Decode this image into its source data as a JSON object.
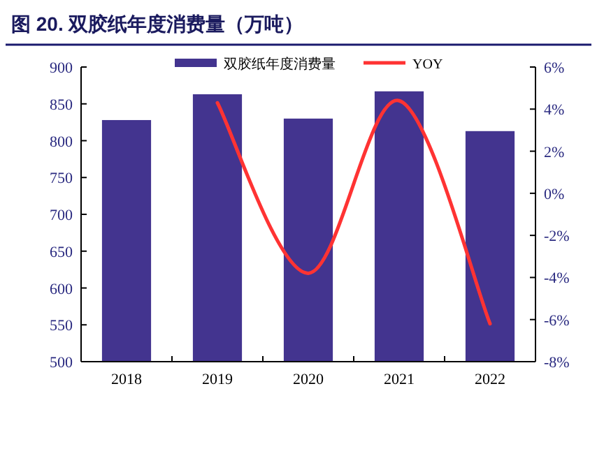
{
  "chart_data": {
    "type": "bar",
    "title": "图 20. 双胶纸年度消费量（万吨）",
    "categories": [
      "2018",
      "2019",
      "2020",
      "2021",
      "2022"
    ],
    "series": [
      {
        "name": "双胶纸年度消费量",
        "color": "#43348f",
        "values": [
          828,
          863,
          830,
          867,
          813
        ]
      },
      {
        "name": "YOY",
        "type": "line",
        "axis": "y2",
        "color": "#ff3333",
        "values": [
          null,
          4.3,
          -3.8,
          4.4,
          -6.2
        ]
      }
    ],
    "ylim": [
      500,
      900
    ],
    "yticks": [
      500,
      550,
      600,
      650,
      700,
      750,
      800,
      850,
      900
    ],
    "y2lim": [
      -8,
      6
    ],
    "y2ticks": [
      {
        "value": -8,
        "label": "-8%"
      },
      {
        "value": -6,
        "label": "-6%"
      },
      {
        "value": -4,
        "label": "-4%"
      },
      {
        "value": -2,
        "label": "-2%"
      },
      {
        "value": 0,
        "label": "0%"
      },
      {
        "value": 2,
        "label": "2%"
      },
      {
        "value": 4,
        "label": "4%"
      },
      {
        "value": 6,
        "label": "6%"
      }
    ],
    "legend": "top",
    "grid": false
  }
}
